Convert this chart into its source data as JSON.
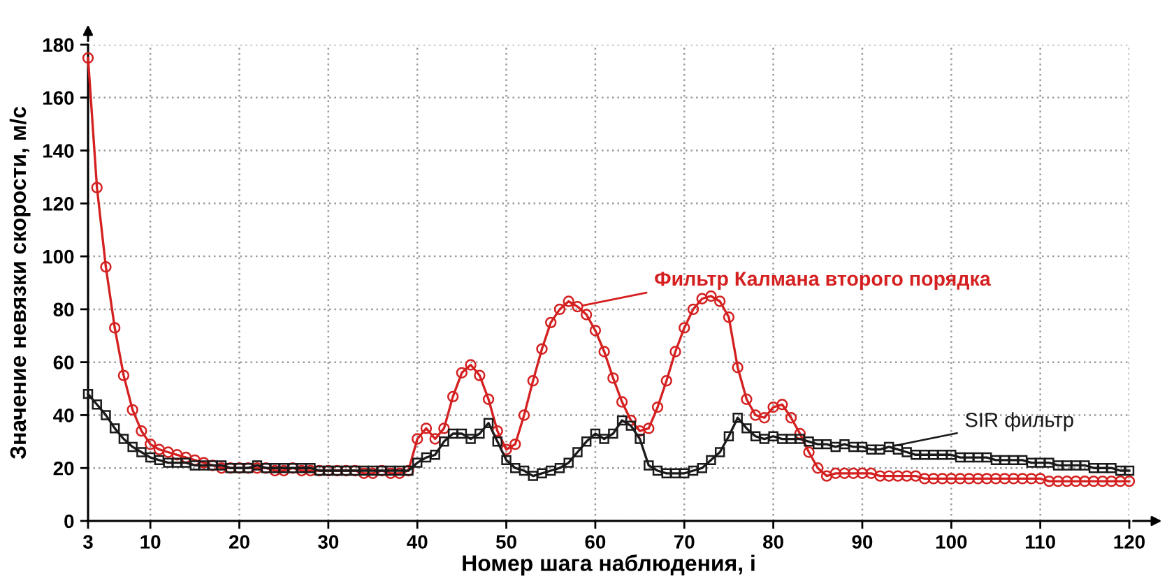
{
  "chart_data": {
    "type": "line",
    "xlabel": "Номер шага наблюдения, i",
    "ylabel": "Значение невязки скорости, м/с",
    "x": [
      3,
      4,
      5,
      6,
      7,
      8,
      9,
      10,
      11,
      12,
      13,
      14,
      15,
      16,
      17,
      18,
      19,
      20,
      21,
      22,
      23,
      24,
      25,
      26,
      27,
      28,
      29,
      30,
      31,
      32,
      33,
      34,
      35,
      36,
      37,
      38,
      39,
      40,
      41,
      42,
      43,
      44,
      45,
      46,
      47,
      48,
      49,
      50,
      51,
      52,
      53,
      54,
      55,
      56,
      57,
      58,
      59,
      60,
      61,
      62,
      63,
      64,
      65,
      66,
      67,
      68,
      69,
      70,
      71,
      72,
      73,
      74,
      75,
      76,
      77,
      78,
      79,
      80,
      81,
      82,
      83,
      84,
      85,
      86,
      87,
      88,
      89,
      90,
      91,
      92,
      93,
      94,
      95,
      96,
      97,
      98,
      99,
      100,
      101,
      102,
      103,
      104,
      105,
      106,
      107,
      108,
      109,
      110,
      111,
      112,
      113,
      114,
      115,
      116,
      117,
      118,
      119,
      120
    ],
    "series": [
      {
        "name": "Фильтр Калмана второго порядка",
        "color": "#d42020",
        "marker": "circle",
        "values": [
          175,
          126,
          96,
          73,
          55,
          42,
          34,
          29,
          27,
          26,
          25,
          24,
          23,
          22,
          21,
          20,
          20,
          20,
          20,
          20,
          20,
          19,
          19,
          20,
          19,
          19,
          19,
          19,
          19,
          19,
          19,
          18,
          18,
          19,
          18,
          18,
          19,
          31,
          35,
          31,
          35,
          47,
          56,
          59,
          55,
          46,
          34,
          27,
          29,
          40,
          53,
          65,
          75,
          80,
          83,
          81,
          78,
          72,
          64,
          54,
          45,
          38,
          34,
          35,
          43,
          53,
          64,
          73,
          80,
          84,
          85,
          83,
          77,
          58,
          46,
          40,
          39,
          43,
          44,
          39,
          33,
          26,
          20,
          17,
          18,
          18,
          18,
          18,
          18,
          17,
          17,
          17,
          17,
          17,
          16,
          16,
          16,
          16,
          16,
          16,
          16,
          16,
          16,
          16,
          16,
          16,
          16,
          16,
          15,
          15,
          15,
          15,
          15,
          15,
          15,
          15,
          15,
          15
        ]
      },
      {
        "name": "SIR фильтр",
        "color": "#1a1a1a",
        "marker": "square",
        "values": [
          48,
          44,
          40,
          35,
          31,
          28,
          26,
          24,
          23,
          22,
          22,
          22,
          21,
          21,
          21,
          21,
          20,
          20,
          20,
          21,
          20,
          20,
          20,
          20,
          20,
          20,
          19,
          19,
          19,
          19,
          19,
          19,
          19,
          19,
          19,
          19,
          19,
          22,
          24,
          25,
          30,
          33,
          33,
          31,
          33,
          37,
          30,
          23,
          20,
          19,
          17,
          18,
          19,
          20,
          22,
          26,
          30,
          33,
          31,
          33,
          38,
          36,
          31,
          21,
          19,
          18,
          18,
          18,
          19,
          20,
          23,
          26,
          32,
          39,
          35,
          32,
          31,
          32,
          31,
          31,
          31,
          30,
          29,
          29,
          28,
          29,
          28,
          28,
          27,
          27,
          28,
          27,
          26,
          25,
          25,
          25,
          25,
          25,
          24,
          24,
          24,
          24,
          23,
          23,
          23,
          23,
          22,
          22,
          22,
          21,
          21,
          21,
          21,
          20,
          20,
          20,
          19,
          19
        ]
      }
    ],
    "xlim": [
      3,
      120
    ],
    "ylim": [
      0,
      180
    ],
    "xticks": [
      3,
      10,
      20,
      30,
      40,
      50,
      60,
      70,
      80,
      90,
      100,
      110,
      120
    ],
    "yticks": [
      0,
      20,
      40,
      60,
      80,
      100,
      120,
      140,
      160,
      180
    ],
    "grid": true,
    "line_style": "solid",
    "legend": false
  }
}
